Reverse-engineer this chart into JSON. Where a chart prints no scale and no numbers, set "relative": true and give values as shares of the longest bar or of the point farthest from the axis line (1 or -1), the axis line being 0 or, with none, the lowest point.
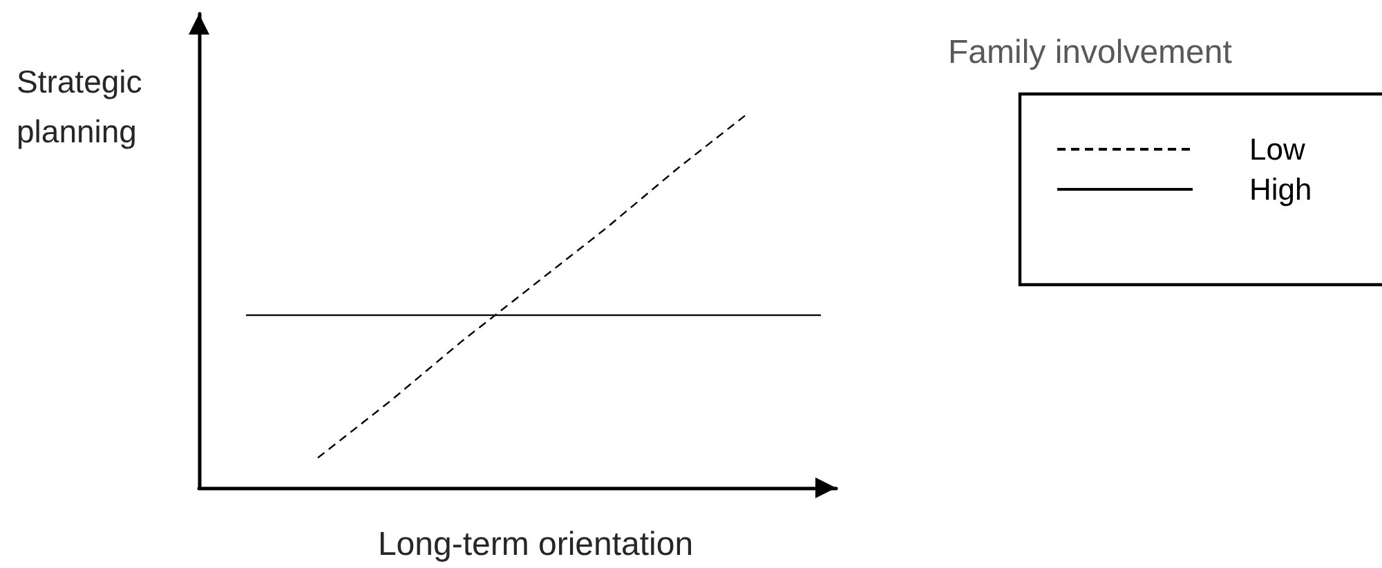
{
  "chart_data": {
    "type": "line",
    "xlabel": "Long-term orientation",
    "ylabel": "Strategic planning",
    "legend_title": "Family involvement",
    "categories": [
      null,
      null,
      null,
      null,
      null,
      null,
      null,
      null,
      null
    ],
    "relative": true,
    "series": [
      {
        "name": "Low",
        "color": "#000000",
        "line_style": "dashed",
        "values": [
          null,
          0.08,
          0.23,
          0.39,
          0.54,
          0.69,
          0.85,
          1,
          null
        ]
      },
      {
        "name": "High",
        "color": "#000000",
        "line_style": "solid",
        "values": [
          0.46,
          0.46,
          0.46,
          0.46,
          0.46,
          0.46,
          0.46,
          0.46,
          0.46
        ]
      }
    ],
    "legend": "top right",
    "grid": false,
    "marker": "none"
  }
}
